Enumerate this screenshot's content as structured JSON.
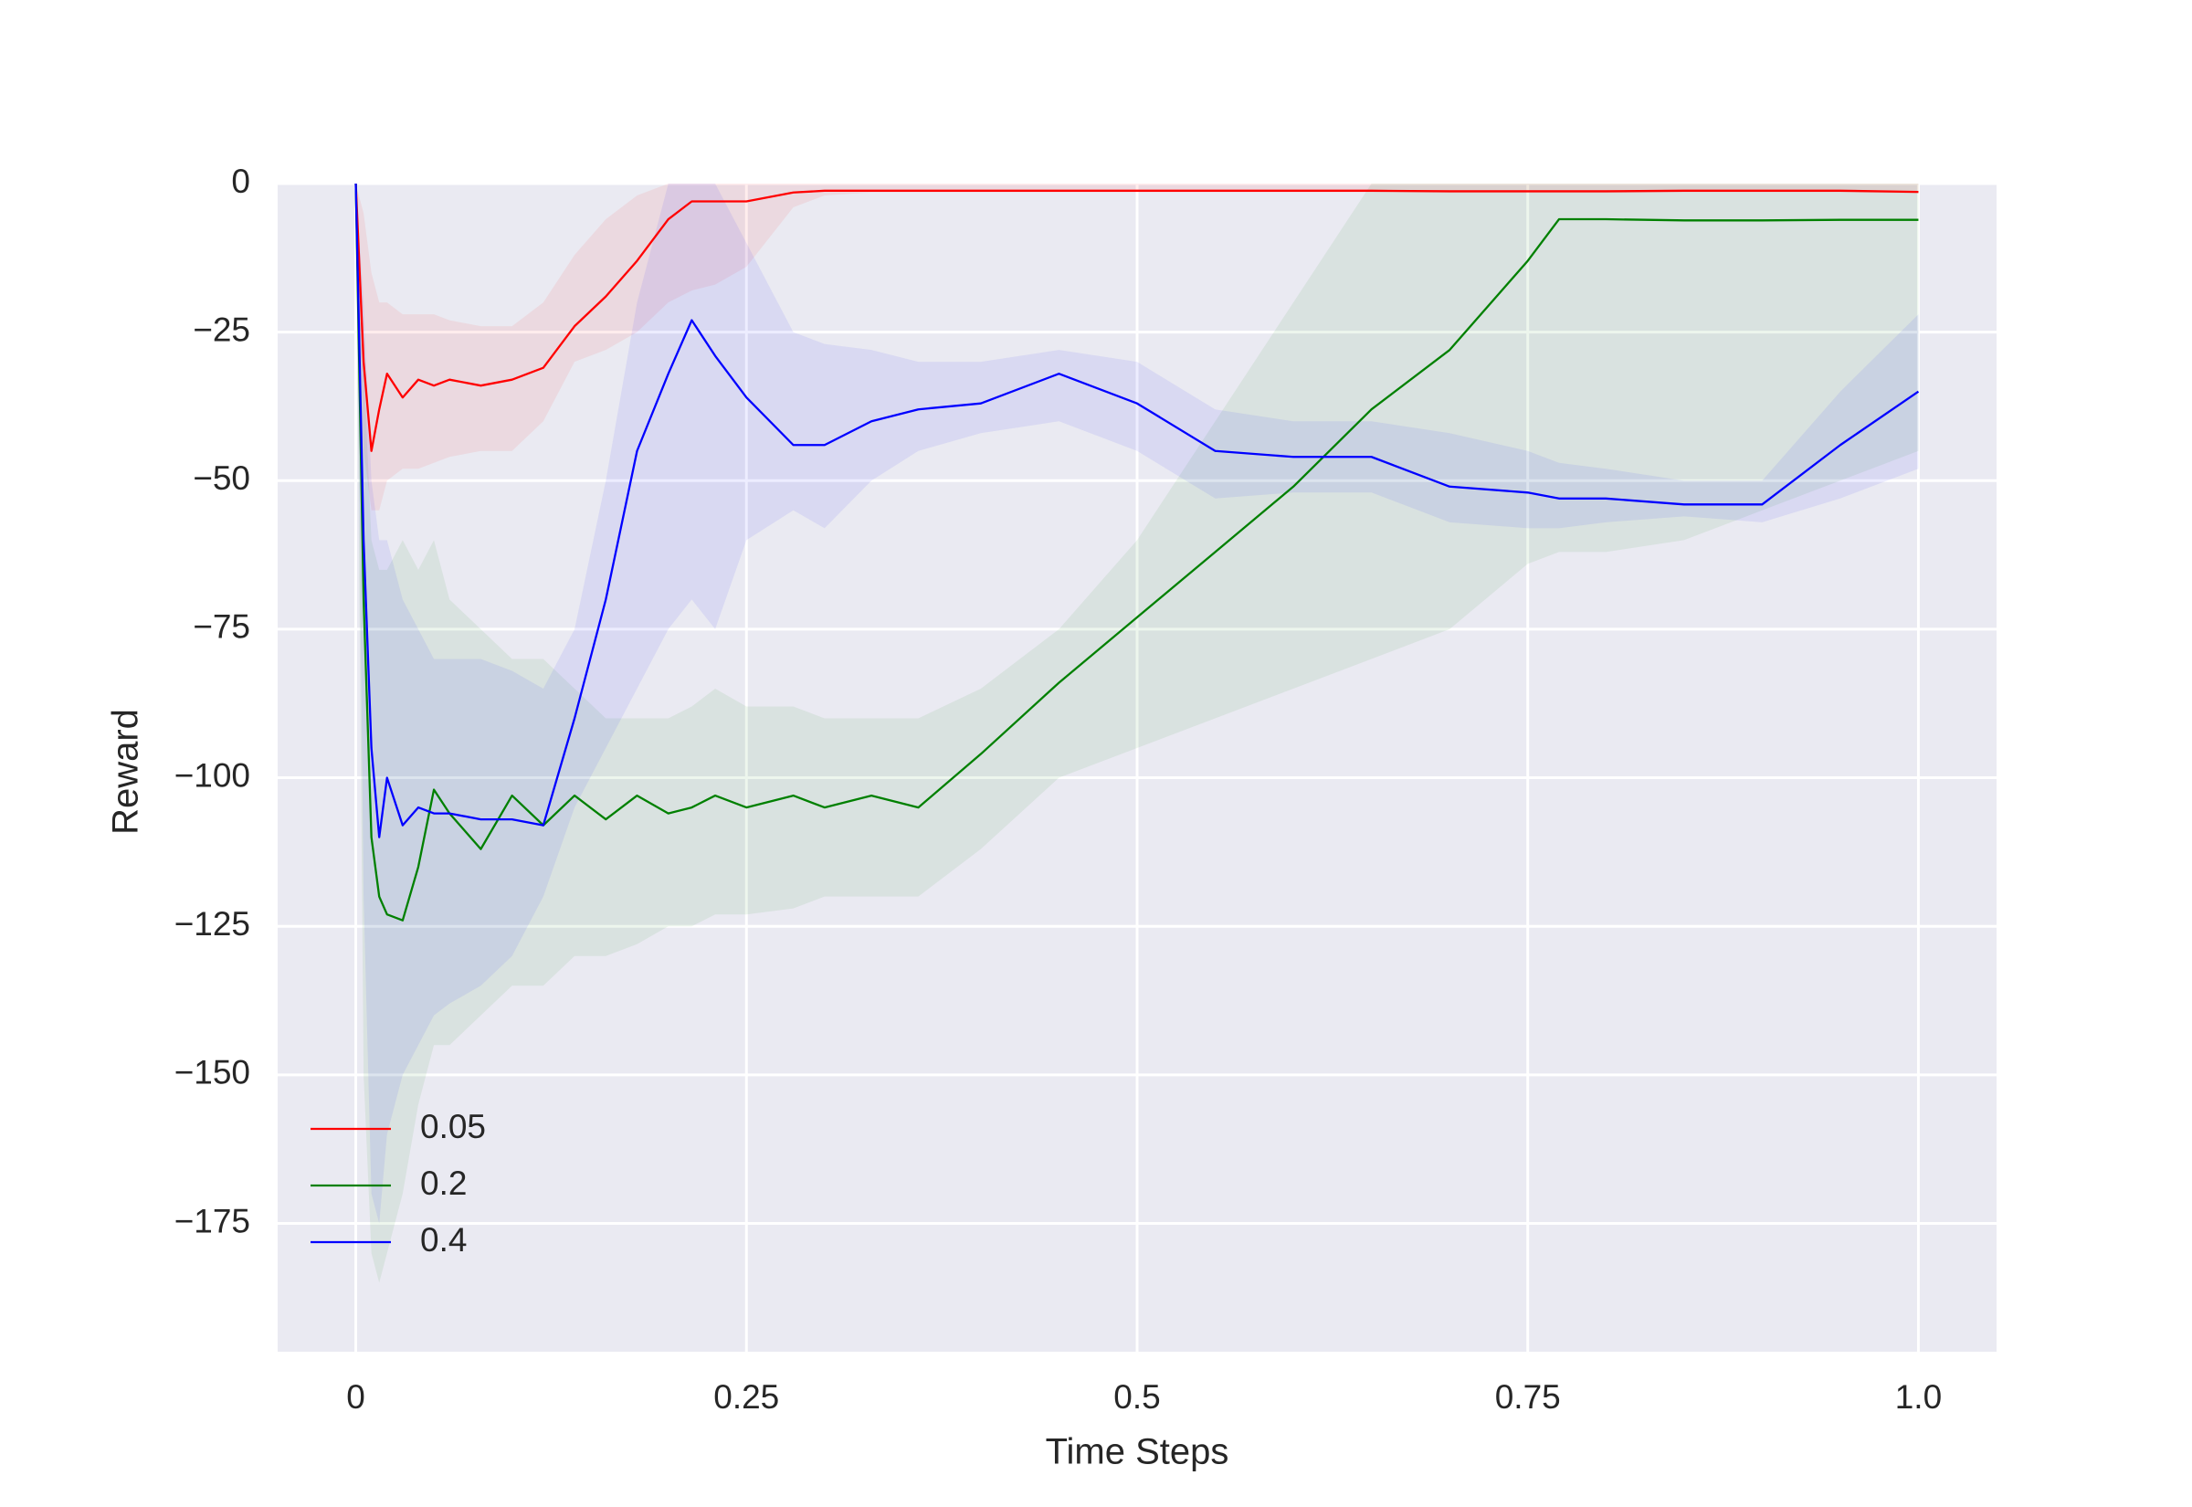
{
  "chart_data": {
    "type": "line",
    "xlabel": "Time Steps",
    "ylabel": "Reward",
    "x": [
      0,
      0.005,
      0.01,
      0.015,
      0.02,
      0.03,
      0.04,
      0.05,
      0.06,
      0.08,
      0.1,
      0.12,
      0.14,
      0.16,
      0.18,
      0.2,
      0.215,
      0.23,
      0.25,
      0.28,
      0.3,
      0.33,
      0.36,
      0.4,
      0.45,
      0.5,
      0.55,
      0.6,
      0.65,
      0.7,
      0.75,
      0.77,
      0.8,
      0.85,
      0.9,
      0.95,
      1.0
    ],
    "series": [
      {
        "name": "0.05",
        "color": "#ff0000",
        "values": [
          0,
          -30,
          -45,
          -38,
          -32,
          -36,
          -33,
          -34,
          -33,
          -34,
          -33,
          -31,
          -24,
          -19,
          -13,
          -6,
          -3,
          -3,
          -3,
          -1.5,
          -1.2,
          -1.2,
          -1.2,
          -1.2,
          -1.2,
          -1.2,
          -1.2,
          -1.2,
          -1.2,
          -1.3,
          -1.3,
          -1.3,
          -1.3,
          -1.2,
          -1.2,
          -1.2,
          -1.4
        ],
        "upper": [
          0,
          -5,
          -15,
          -20,
          -20,
          -22,
          -22,
          -22,
          -23,
          -24,
          -24,
          -20,
          -12,
          -6,
          -2,
          0,
          0,
          0,
          0,
          0,
          0,
          0,
          0,
          0,
          0,
          0,
          0,
          0,
          0,
          0,
          0,
          0,
          0,
          0,
          0,
          0,
          0
        ],
        "lower": [
          0,
          -45,
          -55,
          -55,
          -50,
          -48,
          -48,
          -47,
          -46,
          -45,
          -45,
          -40,
          -30,
          -28,
          -25,
          -20,
          -18,
          -17,
          -14,
          -4,
          -2,
          -1.5,
          -1.5,
          -1.5,
          -1.5,
          -1.5,
          -1.5,
          -1.5,
          -1.5,
          -1.6,
          -1.6,
          -1.6,
          -1.6,
          -1.5,
          -1.5,
          -1.5,
          -1.7
        ]
      },
      {
        "name": "0.2",
        "color": "#008000",
        "values": [
          0,
          -70,
          -110,
          -120,
          -123,
          -124,
          -115,
          -102,
          -106,
          -112,
          -103,
          -108,
          -103,
          -107,
          -103,
          -106,
          -105,
          -103,
          -105,
          -103,
          -105,
          -103,
          -105,
          -96,
          -84,
          -73,
          -62,
          -51,
          -38,
          -28,
          -13,
          -6,
          -6,
          -6.2,
          -6.2,
          -6.1,
          -6.1
        ],
        "upper": [
          0,
          -30,
          -60,
          -65,
          -65,
          -60,
          -65,
          -60,
          -70,
          -75,
          -80,
          -80,
          -85,
          -90,
          -90,
          -90,
          -88,
          -85,
          -88,
          -88,
          -90,
          -90,
          -90,
          -85,
          -75,
          -60,
          -40,
          -20,
          0,
          0,
          0,
          0,
          0,
          0,
          0,
          0,
          0
        ],
        "lower": [
          0,
          -150,
          -180,
          -185,
          -180,
          -170,
          -155,
          -145,
          -145,
          -140,
          -135,
          -135,
          -130,
          -130,
          -128,
          -125,
          -125,
          -123,
          -123,
          -122,
          -120,
          -120,
          -120,
          -112,
          -100,
          -95,
          -90,
          -85,
          -80,
          -75,
          -64,
          -62,
          -62,
          -60,
          -55,
          -50,
          -45
        ]
      },
      {
        "name": "0.4",
        "color": "#0000ff",
        "values": [
          0,
          -60,
          -95,
          -110,
          -100,
          -108,
          -105,
          -106,
          -106,
          -107,
          -107,
          -108,
          -90,
          -70,
          -45,
          -32,
          -23,
          -29,
          -36,
          -44,
          -44,
          -40,
          -38,
          -37,
          -32,
          -37,
          -45,
          -46,
          -46,
          -51,
          -52,
          -53,
          -53,
          -54,
          -54,
          -44,
          -35
        ],
        "upper": [
          0,
          -20,
          -50,
          -60,
          -60,
          -70,
          -75,
          -80,
          -80,
          -80,
          -82,
          -85,
          -75,
          -50,
          -20,
          0,
          0,
          0,
          -10,
          -25,
          -27,
          -28,
          -30,
          -30,
          -28,
          -30,
          -38,
          -40,
          -40,
          -42,
          -45,
          -47,
          -48,
          -50,
          -50,
          -35,
          -22
        ],
        "lower": [
          0,
          -120,
          -170,
          -175,
          -160,
          -150,
          -145,
          -140,
          -138,
          -135,
          -130,
          -120,
          -105,
          -95,
          -85,
          -75,
          -70,
          -75,
          -60,
          -55,
          -58,
          -50,
          -45,
          -42,
          -40,
          -45,
          -53,
          -52,
          -52,
          -57,
          -58,
          -58,
          -57,
          -56,
          -57,
          -53,
          -48
        ]
      }
    ],
    "xlim": [
      -0.05,
      1.05
    ],
    "ylim": [
      -196.6,
      0
    ],
    "xticks": [
      0,
      0.25,
      0.5,
      0.75,
      {
        "value": 1,
        "label": "1.0"
      }
    ],
    "yticks": [
      0,
      {
        "value": -25,
        "label": "−25"
      },
      {
        "value": -50,
        "label": "−50"
      },
      {
        "value": -75,
        "label": "−75"
      },
      {
        "value": -100,
        "label": "−100"
      },
      {
        "value": -125,
        "label": "−125"
      },
      {
        "value": -150,
        "label": "−150"
      },
      {
        "value": -175,
        "label": "−175"
      }
    ],
    "grid": true,
    "legend": "lower left"
  }
}
